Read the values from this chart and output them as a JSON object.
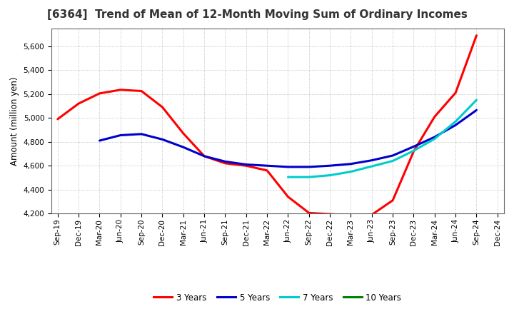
{
  "title": "[6364]  Trend of Mean of 12-Month Moving Sum of Ordinary Incomes",
  "ylabel": "Amount (million yen)",
  "background_color": "#ffffff",
  "plot_bg_color": "#ffffff",
  "ylim": [
    4200,
    5750
  ],
  "yticks": [
    4200,
    4400,
    4600,
    4800,
    5000,
    5200,
    5400,
    5600
  ],
  "x_labels": [
    "Sep-19",
    "Dec-19",
    "Mar-20",
    "Jun-20",
    "Sep-20",
    "Dec-20",
    "Mar-21",
    "Jun-21",
    "Sep-21",
    "Dec-21",
    "Mar-22",
    "Jun-22",
    "Sep-22",
    "Dec-22",
    "Mar-23",
    "Jun-23",
    "Sep-23",
    "Dec-23",
    "Mar-24",
    "Jun-24",
    "Sep-24",
    "Dec-24"
  ],
  "series": {
    "3 Years": {
      "color": "#ff0000",
      "values": [
        4990,
        5120,
        5205,
        5235,
        5225,
        5090,
        4870,
        4680,
        4620,
        4600,
        4560,
        4340,
        4205,
        4195,
        4185,
        4190,
        4310,
        4720,
        5010,
        5210,
        5690,
        null
      ]
    },
    "5 Years": {
      "color": "#0000cc",
      "values": [
        null,
        null,
        4810,
        4855,
        4865,
        4820,
        4755,
        4680,
        4635,
        4610,
        4600,
        4590,
        4590,
        4600,
        4615,
        4645,
        4685,
        4760,
        4840,
        4940,
        5065,
        null
      ]
    },
    "7 Years": {
      "color": "#00cccc",
      "values": [
        null,
        null,
        null,
        null,
        null,
        null,
        null,
        null,
        null,
        null,
        null,
        4505,
        4505,
        4520,
        4550,
        4595,
        4640,
        4725,
        4825,
        4970,
        5150,
        null
      ]
    },
    "10 Years": {
      "color": "#008000",
      "values": [
        null,
        null,
        null,
        null,
        null,
        null,
        null,
        null,
        null,
        null,
        null,
        null,
        null,
        null,
        null,
        null,
        null,
        null,
        null,
        null,
        null,
        null
      ]
    }
  },
  "legend_order": [
    "3 Years",
    "5 Years",
    "7 Years",
    "10 Years"
  ],
  "title_fontsize": 11,
  "title_color": "#333333",
  "axis_fontsize": 8.5,
  "tick_fontsize": 7.5,
  "legend_fontsize": 8.5,
  "line_width": 2.2
}
